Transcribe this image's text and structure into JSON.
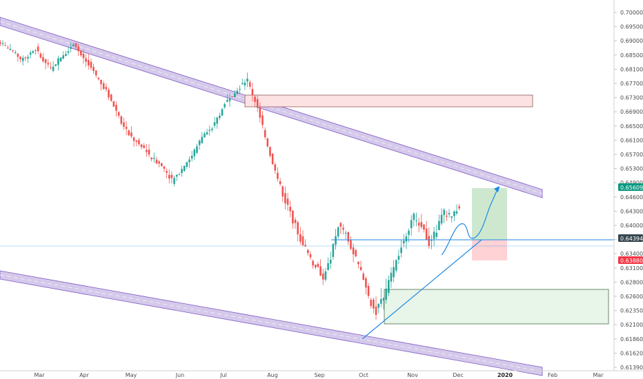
{
  "colors": {
    "up": "#26a69a",
    "down": "#ef5350",
    "channel_fill": "#b39ddb",
    "channel_edge": "#7e57c2",
    "trend_line": "#1e88e5",
    "resistance_fill": "#fde2e4",
    "resistance_edge": "#8d5a5a",
    "support_fill": "#e8f5e9",
    "support_edge": "#4a6b4a",
    "target_fill": "#c8e6c9",
    "stop_fill": "#ffcdd2",
    "badge_green": "#089981",
    "badge_red": "#f23645",
    "badge_dark": "#37474f"
  },
  "chart_data": {
    "type": "candlestick",
    "x_axis_labels": [
      "Mar",
      "Apr",
      "May",
      "Jun",
      "Jul",
      "Aug",
      "Sep",
      "Oct",
      "Nov",
      "Dec",
      "2020",
      "Feb",
      "Mar"
    ],
    "x_axis_bold": [
      "2020"
    ],
    "y_axis_labels": [
      "0.70000",
      "0.69500",
      "0.69000",
      "0.68500",
      "0.68100",
      "0.67700",
      "0.67300",
      "0.66900",
      "0.66500",
      "0.66100",
      "0.65700",
      "0.65300",
      "0.64900",
      "0.64600",
      "0.64300",
      "0.64000",
      "0.63700",
      "0.63400",
      "0.63100",
      "0.62800",
      "0.62600",
      "0.62350",
      "0.62100",
      "0.61860",
      "0.61620",
      "0.61390"
    ],
    "price_badges": [
      {
        "label": "0.65609",
        "role": "target",
        "color": "#089981"
      },
      {
        "label": "0.64394",
        "role": "entry",
        "color": "#37474f"
      },
      {
        "label": "0.63880",
        "role": "stop",
        "color": "#f23645"
      }
    ],
    "ohlc_closes_approx": [
      0.688,
      0.686,
      0.684,
      0.685,
      0.687,
      0.683,
      0.681,
      0.684,
      0.686,
      0.689,
      0.685,
      0.682,
      0.679,
      0.676,
      0.672,
      0.668,
      0.664,
      0.661,
      0.659,
      0.657,
      0.655,
      0.653,
      0.65,
      0.652,
      0.655,
      0.658,
      0.662,
      0.664,
      0.667,
      0.671,
      0.674,
      0.676,
      0.678,
      0.672,
      0.665,
      0.657,
      0.65,
      0.645,
      0.641,
      0.637,
      0.634,
      0.631,
      0.629,
      0.633,
      0.64,
      0.638,
      0.634,
      0.63,
      0.626,
      0.623,
      0.626,
      0.63,
      0.634,
      0.638,
      0.642,
      0.64,
      0.636,
      0.639,
      0.643,
      0.642,
      0.644
    ],
    "annotations": [
      "descending channel (upper)",
      "descending channel (lower)",
      "resistance zone",
      "support zone",
      "ascending trendline",
      "horizontal resistance",
      "long position target",
      "long position stop",
      "projected path"
    ],
    "grid": false
  }
}
